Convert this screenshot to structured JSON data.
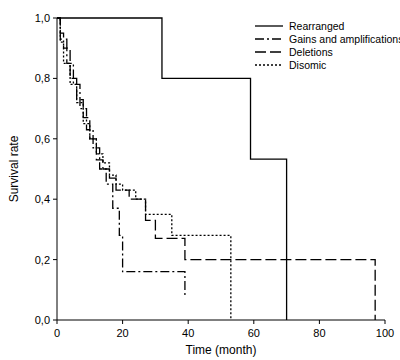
{
  "chart_data": {
    "type": "step",
    "x_label": "Time (month)",
    "y_label": "Survival rate",
    "xlim": [
      0,
      100
    ],
    "xticks": [
      0,
      20,
      40,
      60,
      80,
      100
    ],
    "ylim": [
      0,
      1
    ],
    "yticks": [
      {
        "value": 0,
        "label": "0,0"
      },
      {
        "value": 0.2,
        "label": "0,2"
      },
      {
        "value": 0.4,
        "label": "0,4"
      },
      {
        "value": 0.6,
        "label": "0,6"
      },
      {
        "value": 0.8,
        "label": "0,8"
      },
      {
        "value": 1,
        "label": "1,0"
      }
    ],
    "grid": false,
    "legend": "upper-right",
    "series": [
      {
        "name": "Rearranged",
        "color": "#000000",
        "line_style": "solid",
        "x": [
          0,
          32,
          59,
          70
        ],
        "values": [
          1,
          0.8,
          0.533,
          0
        ]
      },
      {
        "name": "Gains and amplifications",
        "color": "#000000",
        "line_style": "dashdot",
        "x": [
          0,
          1,
          2,
          3,
          5,
          7,
          9,
          11,
          13,
          15,
          17,
          19,
          20,
          39
        ],
        "values": [
          1,
          0.95,
          0.9,
          0.85,
          0.78,
          0.7,
          0.63,
          0.57,
          0.5,
          0.45,
          0.37,
          0.28,
          0.16,
          0.08
        ]
      },
      {
        "name": "Deletions",
        "color": "#000000",
        "line_style": "dashed",
        "x": [
          0,
          1,
          3,
          4,
          6,
          8,
          10,
          12,
          14,
          16,
          18,
          22,
          27,
          30,
          39,
          97
        ],
        "values": [
          1,
          0.93,
          0.9,
          0.8,
          0.73,
          0.67,
          0.6,
          0.53,
          0.5,
          0.47,
          0.43,
          0.4,
          0.33,
          0.27,
          0.2,
          0
        ]
      },
      {
        "name": "Disomic",
        "color": "#000000",
        "line_style": "dotted",
        "x": [
          0,
          1,
          2,
          4,
          6,
          8,
          10,
          12,
          14,
          16,
          18,
          20,
          24,
          27,
          35,
          53
        ],
        "values": [
          1,
          0.92,
          0.85,
          0.78,
          0.72,
          0.65,
          0.6,
          0.55,
          0.52,
          0.48,
          0.45,
          0.43,
          0.4,
          0.35,
          0.28,
          0
        ]
      }
    ]
  }
}
